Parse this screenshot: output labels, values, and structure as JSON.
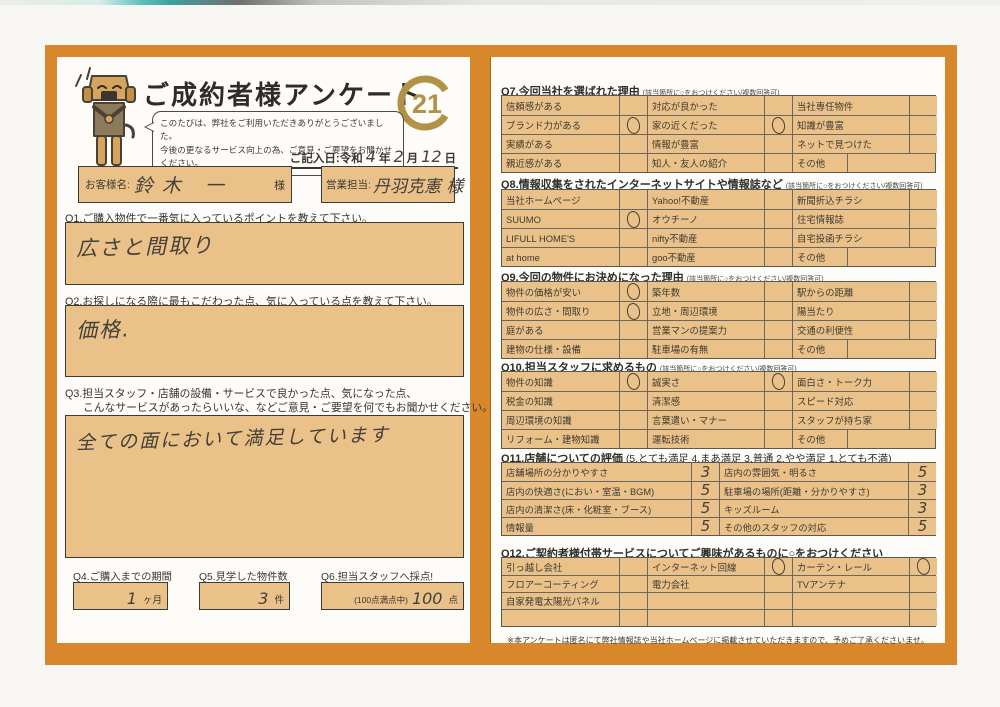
{
  "header": {
    "title": "ご成約者様アンケート",
    "logo_text": "21",
    "bubble_line1": "このたびは、弊社をご利用いただきありがとうございました。",
    "bubble_line2": "今後の更なるサービス向上の為、ご意見・ご要望をお聞かせください。",
    "date_prefix": "ご記入日:令和",
    "date_year": "4",
    "date_year_unit": "年",
    "date_month": "2",
    "date_month_unit": "月",
    "date_day": "12",
    "date_day_unit": "日"
  },
  "customer": {
    "name_label": "お客様名:",
    "name_value": "鈴木 一",
    "name_suffix": "様",
    "agent_label": "営業担当:",
    "agent_value": "丹羽克憲 様"
  },
  "q1": {
    "label": "Q1.ご購入物件で一番気に入っているポイントを教えて下さい。",
    "answer": "広さと間取り"
  },
  "q2": {
    "label": "Q2.お探しになる際に最もこだわった点、気に入っている点を教えて下さい。",
    "answer": "価格."
  },
  "q3": {
    "label_line1": "Q3.担当スタッフ・店舗の設備・サービスで良かった点、気になった点、",
    "label_line2": "こんなサービスがあったらいいな、などご意見・ご要望を何でもお聞かせください。",
    "answer": "全ての面において満足しています"
  },
  "q4": {
    "label": "Q4.ご購入までの期間",
    "value": "1",
    "unit": "ヶ月"
  },
  "q5": {
    "label": "Q5.見学した物件数",
    "value": "3",
    "unit": "件"
  },
  "q6": {
    "label": "Q6.担当スタッフへ採点!",
    "prefix": "(100点満点中)",
    "value": "100",
    "unit": "点"
  },
  "q7": {
    "title": "Q7.今回当社を選ばれた理由",
    "note": "(該当箇所に○をおつけください/複数回答可)",
    "other": true,
    "rows": [
      [
        {
          "label": "信頼感がある",
          "mark": false
        },
        {
          "label": "対応が良かった",
          "mark": false
        },
        {
          "label": "当社専任物件",
          "mark": false
        }
      ],
      [
        {
          "label": "ブランド力がある",
          "mark": true
        },
        {
          "label": "家の近くだった",
          "mark": true
        },
        {
          "label": "知識が豊富",
          "mark": false
        }
      ],
      [
        {
          "label": "実績がある",
          "mark": false
        },
        {
          "label": "情報が豊富",
          "mark": false
        },
        {
          "label": "ネットで見つけた",
          "mark": false
        }
      ],
      [
        {
          "label": "親近感がある",
          "mark": false
        },
        {
          "label": "知人・友人の紹介",
          "mark": false
        },
        {
          "label": "その他",
          "mark": false
        }
      ]
    ]
  },
  "q8": {
    "title": "Q8.情報収集をされたインターネットサイトや情報誌など",
    "note": "(該当箇所に○をおつけください/複数回答可)",
    "other": true,
    "rows": [
      [
        {
          "label": "当社ホームページ",
          "mark": false
        },
        {
          "label": "Yahoo!不動産",
          "mark": false
        },
        {
          "label": "新聞折込チラシ",
          "mark": false
        }
      ],
      [
        {
          "label": "SUUMO",
          "mark": true
        },
        {
          "label": "オウチーノ",
          "mark": false
        },
        {
          "label": "住宅情報誌",
          "mark": false
        }
      ],
      [
        {
          "label": "LIFULL HOME'S",
          "mark": false
        },
        {
          "label": "nifty不動産",
          "mark": false
        },
        {
          "label": "自宅投函チラシ",
          "mark": false
        }
      ],
      [
        {
          "label": "at home",
          "mark": false
        },
        {
          "label": "goo不動産",
          "mark": false
        },
        {
          "label": "その他",
          "mark": false
        }
      ]
    ]
  },
  "q9": {
    "title": "Q9.今回の物件にお決めになった理由",
    "note": "(該当箇所に○をおつけください/複数回答可)",
    "other": true,
    "rows": [
      [
        {
          "label": "物件の価格が安い",
          "mark": true
        },
        {
          "label": "築年数",
          "mark": false
        },
        {
          "label": "駅からの距離",
          "mark": false
        }
      ],
      [
        {
          "label": "物件の広さ・間取り",
          "mark": true
        },
        {
          "label": "立地・周辺環境",
          "mark": false
        },
        {
          "label": "陽当たり",
          "mark": false
        }
      ],
      [
        {
          "label": "庭がある",
          "mark": false
        },
        {
          "label": "営業マンの提案力",
          "mark": false
        },
        {
          "label": "交通の利便性",
          "mark": false
        }
      ],
      [
        {
          "label": "建物の仕様・設備",
          "mark": false
        },
        {
          "label": "駐車場の有無",
          "mark": false
        },
        {
          "label": "その他",
          "mark": false
        }
      ]
    ]
  },
  "q10": {
    "title": "Q10.担当スタッフに求めるもの",
    "note": "(該当箇所に○をおつけください/複数回答可)",
    "other": true,
    "rows": [
      [
        {
          "label": "物件の知識",
          "mark": true
        },
        {
          "label": "誠実さ",
          "mark": true
        },
        {
          "label": "面白さ・トーク力",
          "mark": false
        }
      ],
      [
        {
          "label": "税金の知識",
          "mark": false
        },
        {
          "label": "清潔感",
          "mark": false
        },
        {
          "label": "スピード対応",
          "mark": false
        }
      ],
      [
        {
          "label": "周辺環境の知識",
          "mark": false
        },
        {
          "label": "言葉遣い・マナー",
          "mark": false
        },
        {
          "label": "スタッフが持ち家",
          "mark": false
        }
      ],
      [
        {
          "label": "リフォーム・建物知識",
          "mark": false
        },
        {
          "label": "運転技術",
          "mark": false
        },
        {
          "label": "その他",
          "mark": false
        }
      ]
    ]
  },
  "q11": {
    "title": "Q11.店舗についての評価",
    "note": "(5.とても満足 4.まあ満足 3.普通 2.やや満足 1.とても不満)",
    "rows": [
      [
        {
          "label": "店舗場所の分かりやすさ",
          "score": "3"
        },
        {
          "label": "店内の雰囲気・明るさ",
          "score": "5"
        }
      ],
      [
        {
          "label": "店内の快適さ(におい・室温・BGM)",
          "score": "5"
        },
        {
          "label": "駐車場の場所(距離・分かりやすさ)",
          "score": "3"
        }
      ],
      [
        {
          "label": "店内の清潔さ(床・化粧室・ブース)",
          "score": "5"
        },
        {
          "label": "キッズルーム",
          "score": "3"
        }
      ],
      [
        {
          "label": "情報量",
          "score": "5"
        },
        {
          "label": "その他のスタッフの対応",
          "score": "5"
        }
      ]
    ]
  },
  "q12": {
    "title": "Q12.ご契約者様付帯サービスについてご興味があるものに○をおつけください",
    "note": "",
    "other": false,
    "rows": [
      [
        {
          "label": "引っ越し会社",
          "mark": false
        },
        {
          "label": "インターネット回線",
          "mark": true
        },
        {
          "label": "カーテン・レール",
          "mark": true
        }
      ],
      [
        {
          "label": "フロアーコーティング",
          "mark": false
        },
        {
          "label": "電力会社",
          "mark": false
        },
        {
          "label": "TVアンテナ",
          "mark": false
        }
      ],
      [
        {
          "label": "自家発電太陽光パネル",
          "mark": false
        },
        {
          "label": "",
          "mark": false
        },
        {
          "label": "",
          "mark": false
        }
      ],
      [
        {
          "label": "",
          "mark": false
        },
        {
          "label": "",
          "mark": false
        },
        {
          "label": "",
          "mark": false
        }
      ]
    ]
  },
  "footer": {
    "note": "※本アンケートは匿名にて弊社情報誌や当社ホームページに掲載させていただきますので、予めご了承くださいませ。"
  },
  "colors": {
    "frame": "#d8882b",
    "field": "#eac289",
    "logo_gold": "#b29246"
  }
}
